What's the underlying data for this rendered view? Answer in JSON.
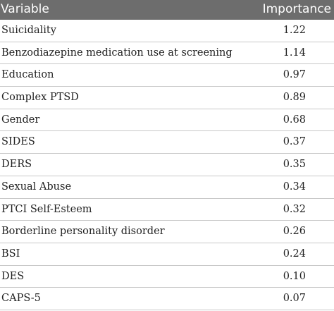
{
  "table": {
    "headers": {
      "variable": "Variable",
      "importance": "Importance"
    },
    "rows": [
      {
        "variable": "Suicidality",
        "importance": "1.22"
      },
      {
        "variable": "Benzodiazepine medication use at screening",
        "importance": "1.14"
      },
      {
        "variable": "Education",
        "importance": "0.97"
      },
      {
        "variable": "Complex PTSD",
        "importance": "0.89"
      },
      {
        "variable": "Gender",
        "importance": "0.68"
      },
      {
        "variable": "SIDES",
        "importance": "0.37"
      },
      {
        "variable": "DERS",
        "importance": "0.35"
      },
      {
        "variable": "Sexual Abuse",
        "importance": "0.34"
      },
      {
        "variable": "PTCI Self-Esteem",
        "importance": "0.32"
      },
      {
        "variable": "Borderline personality disorder",
        "importance": "0.26"
      },
      {
        "variable": "BSI",
        "importance": "0.24"
      },
      {
        "variable": "DES",
        "importance": "0.10"
      },
      {
        "variable": "CAPS-5",
        "importance": "0.07"
      }
    ]
  }
}
